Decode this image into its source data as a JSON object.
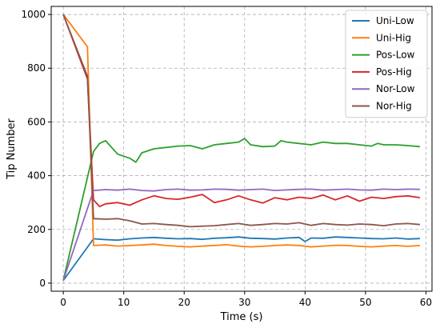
{
  "chart_data": {
    "type": "line",
    "title": "",
    "xlabel": "Time (s)",
    "ylabel": "Tip Number",
    "xlim": [
      -2,
      61
    ],
    "ylim": [
      -30,
      1030
    ],
    "xticks": [
      0,
      10,
      20,
      30,
      40,
      50,
      60
    ],
    "yticks": [
      0,
      200,
      400,
      600,
      800,
      1000
    ],
    "grid": true,
    "legend_position": "top-right",
    "series": [
      {
        "name": "Uni-Low",
        "color": "#1f77b4",
        "x": [
          0,
          5,
          7,
          9,
          11,
          13,
          15,
          17,
          19,
          21,
          23,
          25,
          27,
          29,
          31,
          33,
          35,
          37,
          39,
          40,
          41,
          43,
          45,
          47,
          49,
          51,
          53,
          55,
          57,
          59
        ],
        "y": [
          10,
          165,
          162,
          160,
          165,
          168,
          170,
          167,
          165,
          166,
          163,
          167,
          169,
          172,
          167,
          166,
          164,
          168,
          170,
          155,
          168,
          167,
          172,
          170,
          168,
          166,
          165,
          168,
          164,
          166
        ]
      },
      {
        "name": "Uni-Hig",
        "color": "#ff7f0e",
        "x": [
          0,
          4,
          5,
          7,
          9,
          11,
          13,
          15,
          17,
          19,
          21,
          23,
          25,
          27,
          29,
          31,
          33,
          35,
          37,
          39,
          41,
          43,
          45,
          47,
          49,
          51,
          53,
          55,
          57,
          59
        ],
        "y": [
          1000,
          880,
          140,
          142,
          138,
          140,
          142,
          145,
          140,
          137,
          135,
          138,
          140,
          143,
          138,
          135,
          137,
          140,
          142,
          140,
          135,
          138,
          141,
          140,
          137,
          135,
          138,
          140,
          137,
          140
        ]
      },
      {
        "name": "Pos-Low",
        "color": "#2ca02c",
        "x": [
          0,
          5,
          6,
          7,
          9,
          11,
          12,
          13,
          15,
          17,
          19,
          21,
          23,
          25,
          27,
          29,
          30,
          31,
          33,
          35,
          36,
          37,
          39,
          41,
          43,
          45,
          47,
          49,
          51,
          52,
          53,
          55,
          57,
          59
        ],
        "y": [
          10,
          490,
          520,
          530,
          480,
          465,
          450,
          485,
          500,
          505,
          510,
          512,
          500,
          515,
          520,
          525,
          538,
          515,
          508,
          510,
          530,
          525,
          520,
          515,
          525,
          520,
          520,
          515,
          510,
          520,
          515,
          515,
          512,
          508
        ]
      },
      {
        "name": "Pos-Hig",
        "color": "#d62728",
        "x": [
          0,
          4,
          5,
          6,
          7,
          9,
          11,
          13,
          15,
          17,
          19,
          21,
          23,
          25,
          27,
          29,
          31,
          33,
          35,
          37,
          39,
          41,
          43,
          45,
          47,
          49,
          51,
          53,
          55,
          57,
          59
        ],
        "y": [
          1000,
          760,
          310,
          285,
          295,
          300,
          290,
          310,
          325,
          315,
          312,
          320,
          330,
          300,
          310,
          325,
          310,
          298,
          318,
          310,
          320,
          315,
          328,
          310,
          325,
          305,
          320,
          315,
          322,
          325,
          318
        ]
      },
      {
        "name": "Nor-Low",
        "color": "#9467bd",
        "x": [
          0,
          5,
          7,
          9,
          11,
          13,
          15,
          17,
          19,
          21,
          23,
          25,
          27,
          29,
          31,
          33,
          35,
          37,
          39,
          41,
          43,
          45,
          47,
          49,
          51,
          53,
          55,
          57,
          59
        ],
        "y": [
          10,
          345,
          348,
          346,
          350,
          345,
          343,
          348,
          350,
          346,
          347,
          350,
          349,
          346,
          348,
          350,
          345,
          347,
          349,
          350,
          346,
          348,
          350,
          347,
          346,
          350,
          348,
          350,
          349
        ]
      },
      {
        "name": "Nor-Hig",
        "color": "#8c564b",
        "x": [
          0,
          4,
          5,
          7,
          9,
          11,
          13,
          15,
          17,
          19,
          21,
          23,
          25,
          27,
          29,
          31,
          33,
          35,
          37,
          39,
          41,
          43,
          45,
          47,
          49,
          51,
          53,
          55,
          57,
          59
        ],
        "y": [
          1000,
          770,
          240,
          238,
          240,
          232,
          220,
          222,
          218,
          215,
          210,
          212,
          214,
          218,
          222,
          215,
          218,
          222,
          220,
          225,
          215,
          222,
          218,
          216,
          220,
          218,
          214,
          220,
          222,
          218
        ]
      }
    ]
  }
}
